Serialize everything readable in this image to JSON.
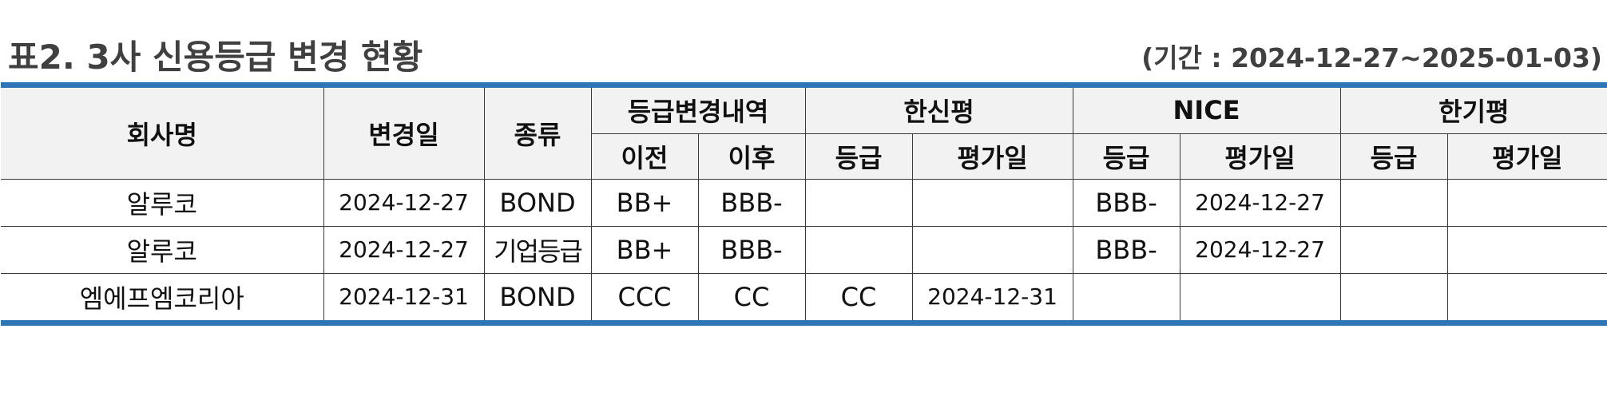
{
  "title": "표2. 3사 신용등급 변경 현황",
  "period": "(기간 : 2024-12-27~2025-01-03)",
  "colors": {
    "accent_border": "#2e75b6",
    "header_bg": "#f2f2f2",
    "title_text": "#404040"
  },
  "header": {
    "company": "회사명",
    "change_date": "변경일",
    "type": "종류",
    "rating_change": "등급변경내역",
    "before": "이전",
    "after": "이후",
    "hanshin": "한신평",
    "nice": "NICE",
    "hangi": "한기평",
    "grade": "등급",
    "eval_date": "평가일"
  },
  "rows": [
    {
      "company": "알루코",
      "change_date": "2024-12-27",
      "type": "BOND",
      "before": "BB+",
      "after": "BBB-",
      "hanshin_grade": "",
      "hanshin_date": "",
      "nice_grade": "BBB-",
      "nice_date": "2024-12-27",
      "hangi_grade": "",
      "hangi_date": ""
    },
    {
      "company": "알루코",
      "change_date": "2024-12-27",
      "type": "기업등급",
      "before": "BB+",
      "after": "BBB-",
      "hanshin_grade": "",
      "hanshin_date": "",
      "nice_grade": "BBB-",
      "nice_date": "2024-12-27",
      "hangi_grade": "",
      "hangi_date": ""
    },
    {
      "company": "엠에프엠코리아",
      "change_date": "2024-12-31",
      "type": "BOND",
      "before": "CCC",
      "after": "CC",
      "hanshin_grade": "CC",
      "hanshin_date": "2024-12-31",
      "nice_grade": "",
      "nice_date": "",
      "hangi_grade": "",
      "hangi_date": ""
    }
  ]
}
